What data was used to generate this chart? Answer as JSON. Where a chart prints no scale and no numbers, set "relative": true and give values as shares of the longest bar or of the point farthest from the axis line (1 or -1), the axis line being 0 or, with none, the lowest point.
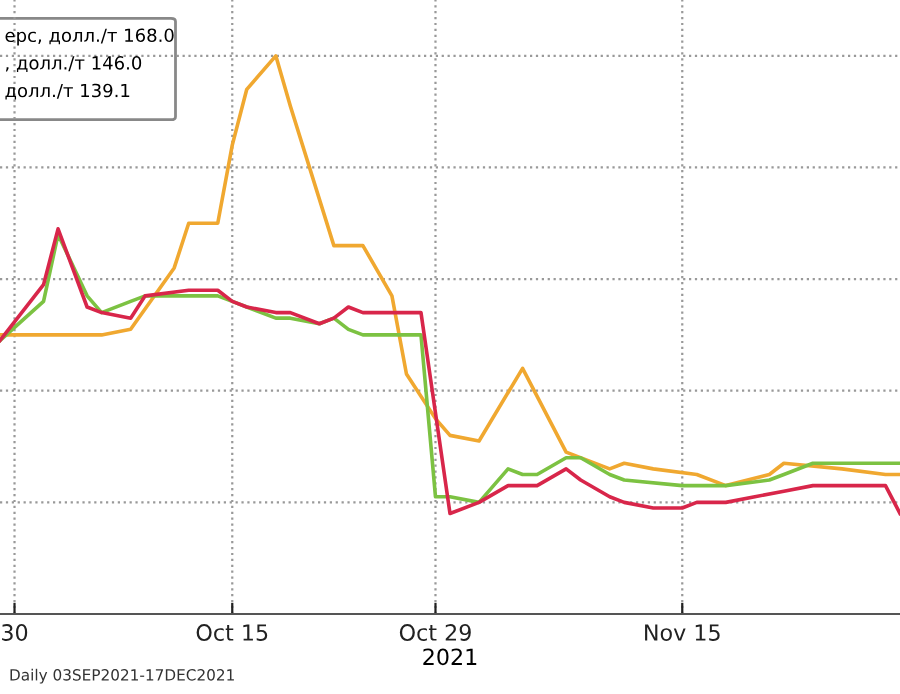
{
  "chart_data": {
    "type": "line",
    "relative": true,
    "xlabel": "2021",
    "x": [
      "2021-09-29",
      "2021-10-02",
      "2021-10-03",
      "2021-10-05",
      "2021-10-06",
      "2021-10-08",
      "2021-10-09",
      "2021-10-11",
      "2021-10-12",
      "2021-10-14",
      "2021-10-15",
      "2021-10-16",
      "2021-10-18",
      "2021-10-19",
      "2021-10-21",
      "2021-10-22",
      "2021-10-23",
      "2021-10-24",
      "2021-10-26",
      "2021-10-27",
      "2021-10-28",
      "2021-10-29",
      "2021-10-30",
      "2021-11-01",
      "2021-11-03",
      "2021-11-04",
      "2021-11-05",
      "2021-11-07",
      "2021-11-08",
      "2021-11-10",
      "2021-11-11",
      "2021-11-13",
      "2021-11-15",
      "2021-11-16",
      "2021-11-18",
      "2021-11-20",
      "2021-11-21",
      "2021-11-22",
      "2021-11-24",
      "2021-11-26",
      "2021-11-27",
      "2021-11-29",
      "2021-11-30"
    ],
    "series": [
      {
        "color": "#f0a830",
        "values": [
          0.5,
          null,
          null,
          null,
          0.5,
          0.51,
          null,
          0.62,
          0.7,
          0.7,
          0.84,
          0.94,
          1.0,
          0.91,
          null,
          0.66,
          0.66,
          0.66,
          0.57,
          0.43,
          null,
          0.35,
          0.32,
          0.31,
          null,
          0.44,
          null,
          0.29,
          null,
          0.26,
          0.27,
          0.26,
          null,
          0.25,
          0.23,
          null,
          0.25,
          0.27,
          null,
          0.26,
          null,
          0.25,
          0.25
        ]
      },
      {
        "color": "#7cc242",
        "values": [
          0.49,
          0.56,
          0.68,
          0.57,
          0.54,
          0.56,
          0.57,
          null,
          0.57,
          0.57,
          0.56,
          0.55,
          0.53,
          0.53,
          0.52,
          0.53,
          0.51,
          0.5,
          null,
          null,
          0.5,
          0.21,
          0.21,
          0.2,
          0.26,
          0.25,
          0.25,
          0.28,
          0.28,
          0.25,
          0.24,
          null,
          0.23,
          null,
          0.23,
          null,
          0.24,
          0.25,
          0.27,
          null,
          0.27,
          null,
          0.27
        ]
      },
      {
        "color": "#d8264a",
        "values": [
          0.49,
          0.59,
          0.69,
          0.55,
          0.54,
          0.53,
          0.57,
          null,
          0.58,
          0.58,
          0.56,
          0.55,
          0.54,
          0.54,
          0.52,
          0.53,
          0.55,
          0.54,
          0.54,
          null,
          0.54,
          null,
          0.18,
          0.2,
          0.23,
          0.23,
          0.23,
          0.26,
          0.24,
          0.21,
          0.2,
          0.19,
          0.19,
          0.2,
          0.2,
          0.21,
          null,
          0.22,
          0.23,
          0.23,
          0.23,
          0.23,
          0.18
        ]
      }
    ],
    "xlim": [
      "2021-09-29",
      "2021-11-30"
    ],
    "xticks": [
      {
        "value": "2021-09-30",
        "label": "30"
      },
      {
        "value": "2021-10-15",
        "label": "Oct 15"
      },
      {
        "value": "2021-10-29",
        "label": "Oct 29"
      },
      {
        "value": "2021-11-15",
        "label": "Nov 15"
      }
    ],
    "grid": true,
    "line_style": "solid",
    "marker": "none",
    "annotations": [
      "ерс, долл./т 168.0",
      ", долл./т 146.0",
      "долл./т 139.1",
      "Daily 03SEP2021-17DEC2021"
    ]
  }
}
